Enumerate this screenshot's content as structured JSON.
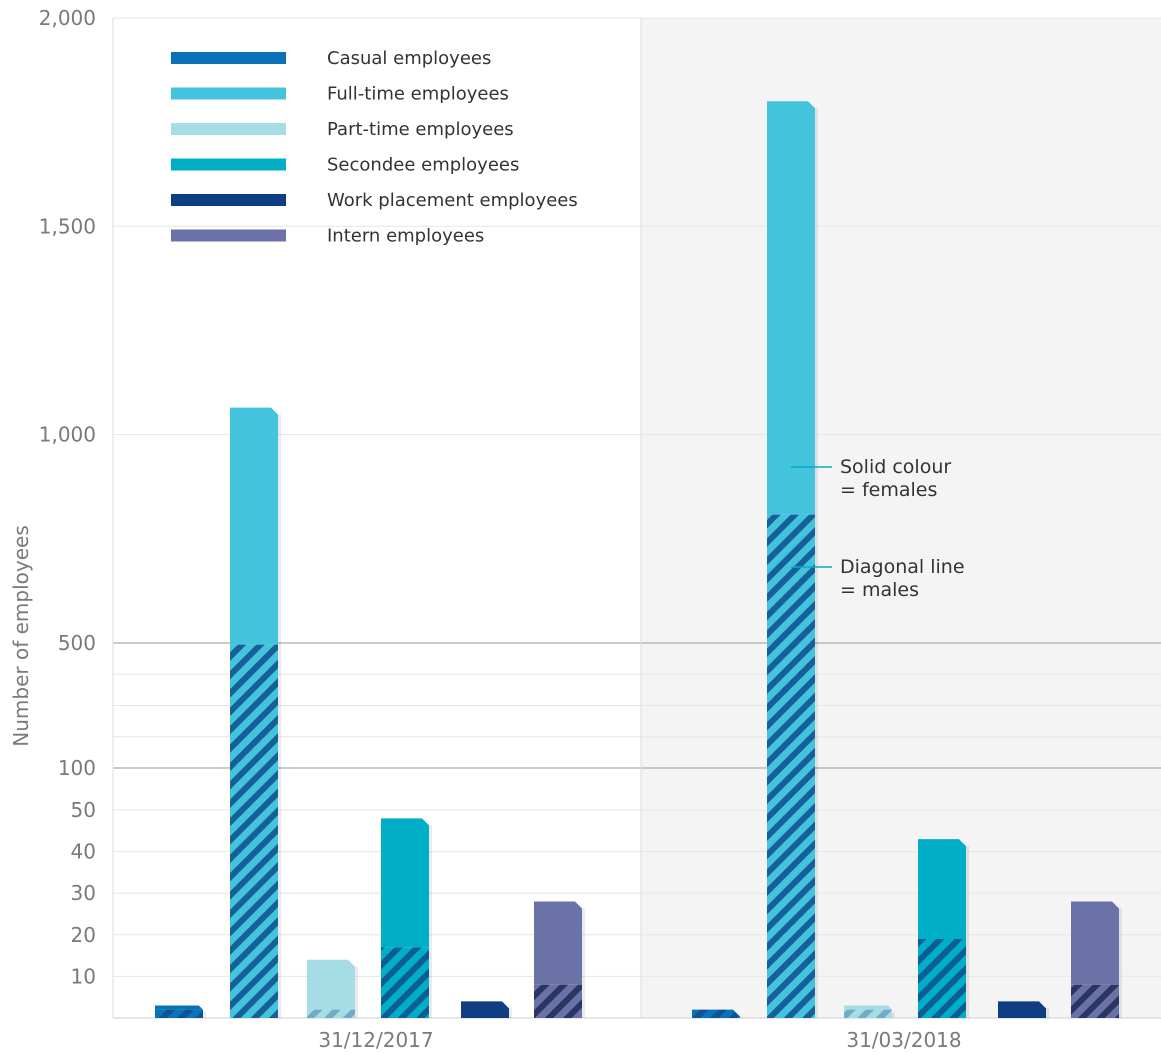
{
  "chart_data": {
    "type": "bar",
    "ylabel": "Number of employees",
    "categories": [
      "31/12/2017",
      "31/03/2018"
    ],
    "y_ticks": [
      "2,000",
      "1,500",
      "1,000",
      "500",
      "100",
      "50",
      "40",
      "30",
      "20",
      "10"
    ],
    "scale": "piecewise (0-50 in steps of 10, 50-500 compressed, 500-2,000 in steps of 500)",
    "series": [
      {
        "name": "Casual employees",
        "color": "#0a72b8",
        "female": [
          1,
          0
        ],
        "male": [
          2,
          2
        ]
      },
      {
        "name": "Full-time employees",
        "color": "#44c3dd",
        "female": [
          570,
          992
        ],
        "male": [
          495,
          808
        ]
      },
      {
        "name": "Part-time employees",
        "color": "#a6dce5",
        "female": [
          12,
          1
        ],
        "male": [
          2,
          2
        ]
      },
      {
        "name": "Secondee employees",
        "color": "#00afc6",
        "female": [
          31,
          24
        ],
        "male": [
          17,
          19
        ]
      },
      {
        "name": "Work placement employees",
        "color": "#0f3f82",
        "female": [
          4,
          4
        ],
        "male": [
          0,
          0
        ]
      },
      {
        "name": "Intern employees",
        "color": "#6a72a7",
        "female": [
          20,
          20
        ],
        "male": [
          8,
          8
        ]
      }
    ],
    "annotations": [
      {
        "lines": [
          "Solid colour",
          "= females"
        ]
      },
      {
        "lines": [
          "Diagonal line",
          "= males"
        ]
      }
    ],
    "legend": "top-left"
  }
}
